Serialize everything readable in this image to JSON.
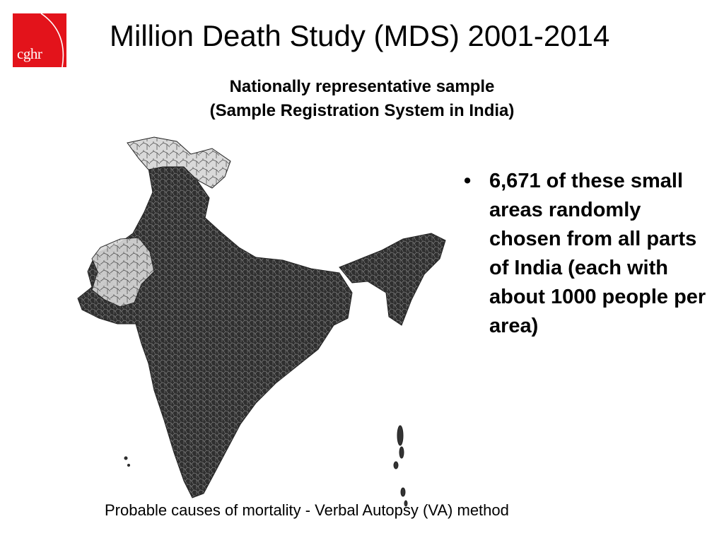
{
  "logo": {
    "text": "cghr",
    "color": "#e3131b"
  },
  "title": "Million Death Study (MDS) 2001-2014",
  "subtitle": {
    "line1": "Nationally representative sample",
    "line2": "(Sample Registration System in India)"
  },
  "map": {
    "fill_dark": "#2b2b2b",
    "fill_light": "#d8d8d8"
  },
  "bullets": [
    {
      "symbol": "•",
      "text": "6,671 of these small areas randomly chosen from all parts of India (each with about 1000 people per area)"
    }
  ],
  "footer": "Probable causes of mortality - Verbal Autopsy (VA) method"
}
